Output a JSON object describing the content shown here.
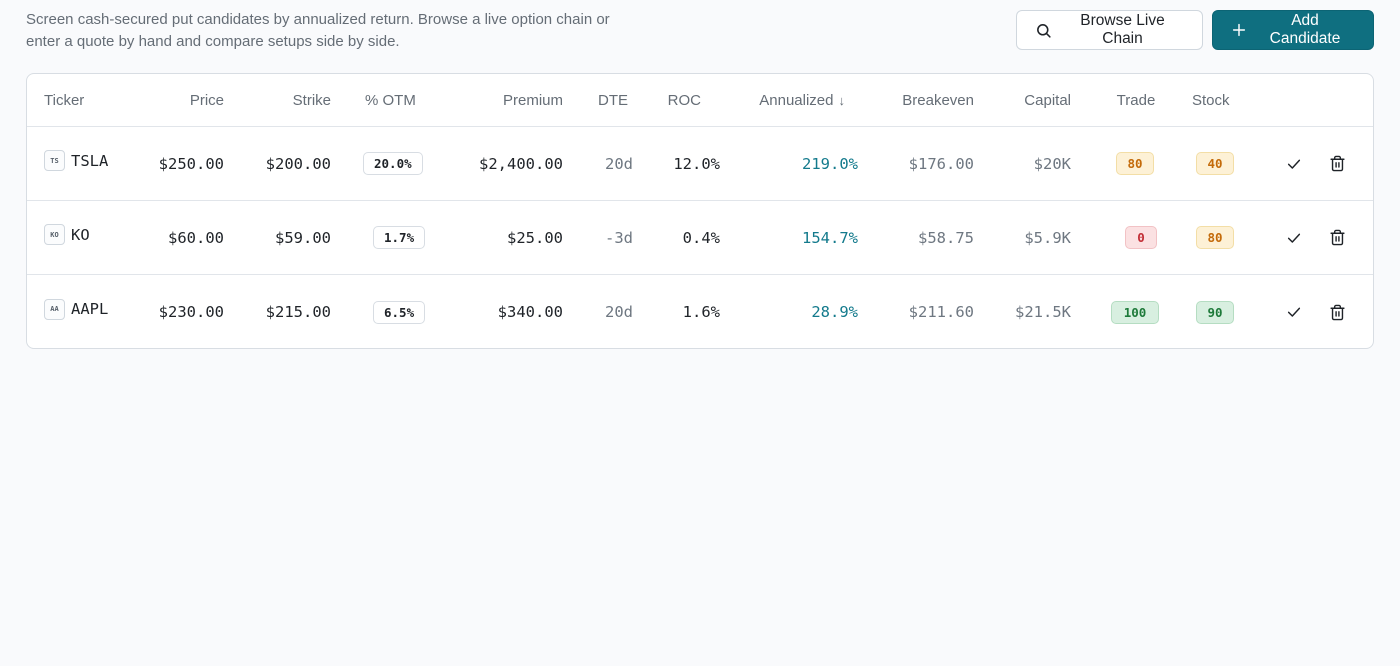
{
  "description": "Screen cash-secured put candidates by annualized return. Browse a live option chain or enter a quote by hand and compare setups side by side.",
  "actions": {
    "browse_label": "Browse Live Chain",
    "add_label": "Add Candidate"
  },
  "table": {
    "headers": {
      "ticker": "Ticker",
      "price": "Price",
      "strike": "Strike",
      "otm": "% OTM",
      "premium": "Premium",
      "dte": "DTE",
      "roc": "ROC",
      "annualized": "Annualized",
      "breakeven": "Breakeven",
      "capital": "Capital",
      "trade": "Trade",
      "stock": "Stock"
    },
    "sort_indicator": "↓",
    "rows": [
      {
        "icon": "TS",
        "ticker": "TSLA",
        "price": "$250.00",
        "strike": "$200.00",
        "otm": "20.0%",
        "premium": "$2,400.00",
        "dte": "20d",
        "roc": "12.0%",
        "annualized": "219.0%",
        "breakeven": "$176.00",
        "capital": "$20K",
        "trade": "80",
        "stock": "40"
      },
      {
        "icon": "KO",
        "ticker": "KO",
        "price": "$60.00",
        "strike": "$59.00",
        "otm": "1.7%",
        "premium": "$25.00",
        "dte": "-3d",
        "roc": "0.4%",
        "annualized": "154.7%",
        "breakeven": "$58.75",
        "capital": "$5.9K",
        "trade": "0",
        "stock": "80"
      },
      {
        "icon": "AA",
        "ticker": "AAPL",
        "price": "$230.00",
        "strike": "$215.00",
        "otm": "6.5%",
        "premium": "$340.00",
        "dte": "20d",
        "roc": "1.6%",
        "annualized": "28.9%",
        "breakeven": "$211.60",
        "capital": "$21.5K",
        "trade": "100",
        "stock": "90"
      }
    ]
  },
  "colors": {
    "accent": "#0f6f80",
    "annualized": "#137a8c",
    "score_amber": "#c46b0a",
    "score_red": "#c22e36",
    "score_green": "#1e7a3a"
  },
  "icons": {
    "browse": "search-icon",
    "add": "plus-icon",
    "confirm": "check-icon",
    "delete": "trash-icon"
  }
}
